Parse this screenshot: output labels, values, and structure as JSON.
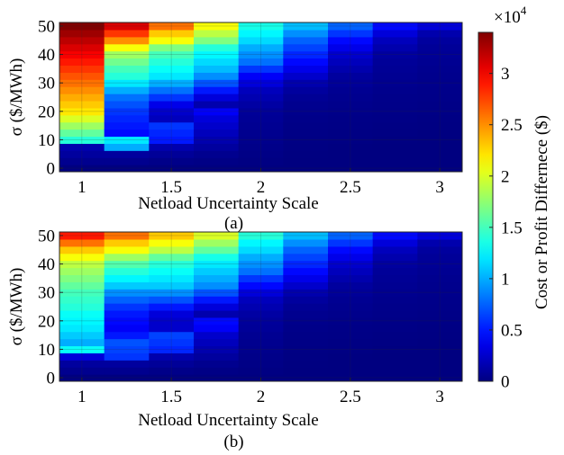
{
  "chart_data": [
    {
      "type": "heatmap",
      "panel_label": "(a)",
      "xlabel": "Netload Uncertainty Scale",
      "ylabel": "σ ($/MWh)",
      "x": [
        1.0,
        1.25,
        1.5,
        1.75,
        2.0,
        2.25,
        2.5,
        2.75,
        3.0
      ],
      "y": [
        0,
        2.5,
        5,
        7.5,
        10,
        12.5,
        15,
        17.5,
        20,
        22.5,
        25,
        27.5,
        30,
        32.5,
        35,
        37.5,
        40,
        42.5,
        45,
        47.5,
        50
      ],
      "xlim": [
        0.875,
        3.125
      ],
      "ylim": [
        -1.25,
        51.25
      ],
      "xticks": [
        "1",
        "1.5",
        "2",
        "2.5",
        "3"
      ],
      "yticks": [
        "0",
        "10",
        "20",
        "30",
        "40",
        "50"
      ],
      "grid": true,
      "values": [
        [
          0,
          500,
          1000,
          1500,
          14000,
          16000,
          18000,
          20000,
          22000,
          23000,
          24000,
          25000,
          26000,
          27000,
          28000,
          29000,
          30000,
          31000,
          32000,
          33000,
          34000
        ],
        [
          0,
          500,
          1000,
          10000,
          12000,
          4500,
          5000,
          5500,
          6000,
          7000,
          8000,
          10000,
          12000,
          14000,
          15000,
          16500,
          18000,
          21000,
          25000,
          28000,
          31000
        ],
        [
          0,
          300,
          800,
          1500,
          5000,
          5500,
          6000,
          2000,
          2500,
          3500,
          6000,
          8000,
          10000,
          12000,
          13000,
          14000,
          15000,
          17000,
          21000,
          23000,
          26000
        ],
        [
          0,
          200,
          500,
          1000,
          1500,
          2000,
          2500,
          3000,
          4000,
          1500,
          3000,
          5000,
          7000,
          9000,
          10500,
          11500,
          12500,
          14000,
          17000,
          19000,
          21000
        ],
        [
          0,
          100,
          200,
          300,
          400,
          500,
          600,
          700,
          800,
          1200,
          1600,
          2000,
          3000,
          4000,
          6000,
          8000,
          9000,
          10000,
          11500,
          12500,
          13500
        ],
        [
          0,
          0,
          50,
          100,
          150,
          200,
          250,
          300,
          400,
          500,
          700,
          1000,
          1500,
          2500,
          3500,
          4500,
          5500,
          6500,
          7500,
          9000,
          10500
        ],
        [
          0,
          0,
          0,
          50,
          100,
          150,
          200,
          250,
          300,
          400,
          500,
          600,
          800,
          1000,
          1500,
          2000,
          2500,
          3500,
          4500,
          6000,
          7500
        ],
        [
          0,
          0,
          0,
          0,
          50,
          100,
          150,
          200,
          250,
          300,
          350,
          400,
          500,
          600,
          700,
          800,
          1000,
          1500,
          2000,
          3000,
          4500
        ],
        [
          0,
          0,
          0,
          0,
          0,
          50,
          100,
          150,
          200,
          250,
          300,
          350,
          400,
          450,
          500,
          600,
          700,
          800,
          1000,
          1500,
          3000
        ]
      ]
    },
    {
      "type": "heatmap",
      "panel_label": "(b)",
      "xlabel": "Netload Uncertainty Scale",
      "ylabel": "σ ($/MWh)",
      "x": [
        1.0,
        1.25,
        1.5,
        1.75,
        2.0,
        2.25,
        2.5,
        2.75,
        3.0
      ],
      "y": [
        0,
        2.5,
        5,
        7.5,
        10,
        12.5,
        15,
        17.5,
        20,
        22.5,
        25,
        27.5,
        30,
        32.5,
        35,
        37.5,
        40,
        42.5,
        45,
        47.5,
        50
      ],
      "xlim": [
        0.875,
        3.125
      ],
      "ylim": [
        -1.25,
        51.25
      ],
      "xticks": [
        "1",
        "1.5",
        "2",
        "2.5",
        "3"
      ],
      "yticks": [
        "0",
        "10",
        "20",
        "30",
        "40",
        "50"
      ],
      "grid": true,
      "values": [
        [
          0,
          500,
          1000,
          3000,
          13000,
          10000,
          11000,
          12000,
          12500,
          13000,
          14000,
          14500,
          15000,
          16000,
          17000,
          18000,
          19000,
          21000,
          23000,
          26000,
          29000
        ],
        [
          0,
          500,
          1000,
          6000,
          6500,
          7000,
          5000,
          4000,
          4500,
          5000,
          6000,
          7500,
          9000,
          11000,
          12500,
          14000,
          15500,
          18000,
          21000,
          23000,
          26000
        ],
        [
          0,
          300,
          800,
          1500,
          5500,
          6000,
          6500,
          2500,
          2500,
          3000,
          5000,
          7000,
          9000,
          11000,
          12000,
          13000,
          14000,
          16000,
          19000,
          21000,
          23000
        ],
        [
          0,
          200,
          500,
          1000,
          1500,
          2000,
          2500,
          4000,
          4500,
          1500,
          3000,
          5000,
          7000,
          9000,
          10000,
          11000,
          12000,
          13500,
          16000,
          18000,
          20000
        ],
        [
          0,
          100,
          200,
          300,
          400,
          500,
          600,
          800,
          900,
          1200,
          1600,
          2000,
          3000,
          4500,
          6000,
          8000,
          9000,
          10000,
          11500,
          12500,
          14000
        ],
        [
          0,
          0,
          50,
          100,
          150,
          200,
          250,
          300,
          400,
          500,
          700,
          1000,
          1500,
          2500,
          3500,
          4500,
          5500,
          6500,
          7500,
          9000,
          10500
        ],
        [
          0,
          0,
          0,
          50,
          100,
          150,
          200,
          250,
          300,
          400,
          500,
          600,
          800,
          1000,
          1500,
          2000,
          2500,
          3500,
          4500,
          6000,
          7500
        ],
        [
          0,
          0,
          0,
          0,
          50,
          100,
          150,
          200,
          250,
          300,
          350,
          400,
          500,
          600,
          700,
          800,
          1000,
          1500,
          2000,
          3000,
          4500
        ],
        [
          0,
          0,
          0,
          0,
          0,
          50,
          100,
          150,
          200,
          250,
          300,
          350,
          400,
          450,
          500,
          600,
          700,
          800,
          1000,
          1500,
          3000
        ]
      ]
    }
  ],
  "colorbar": {
    "colormap": "jet",
    "range": [
      0,
      34000
    ],
    "tick_values": [
      0,
      5000,
      10000,
      15000,
      20000,
      25000,
      30000
    ],
    "tick_labels": [
      "0",
      "0.5",
      "1",
      "1.5",
      "2",
      "2.5",
      "3"
    ],
    "label": "Cost or Profit Differnece ($)",
    "multiplier_base": "×10",
    "multiplier_exponent": "4"
  }
}
